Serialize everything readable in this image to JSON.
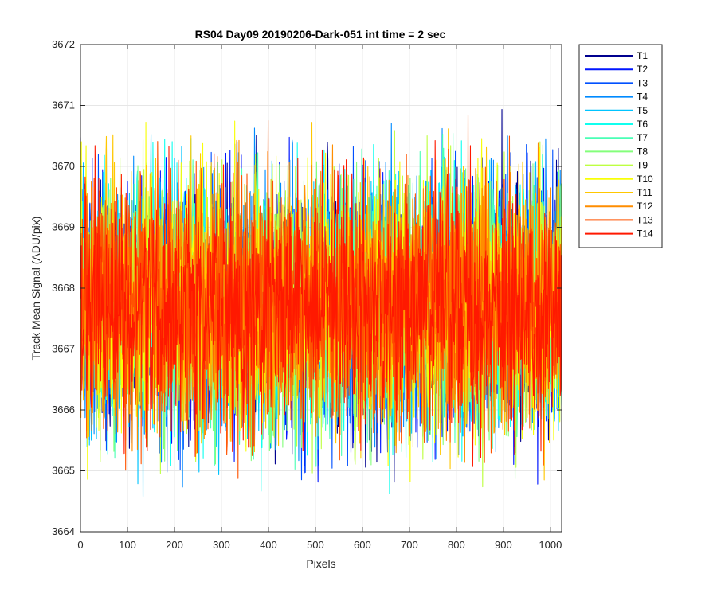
{
  "chart_data": {
    "type": "line",
    "title": "RS04 Day09 20190206-Dark-051 int time = 2 sec",
    "xlabel": "Pixels",
    "ylabel": "Track Mean Signal (ADU/pix)",
    "xlim": [
      0,
      1024
    ],
    "ylim": [
      3664,
      3672
    ],
    "xticks": [
      0,
      100,
      200,
      300,
      400,
      500,
      600,
      700,
      800,
      900,
      1000
    ],
    "yticks": [
      3664,
      3665,
      3666,
      3667,
      3668,
      3669,
      3670,
      3671,
      3672
    ],
    "grid": true,
    "legend_position": "outside-top-right",
    "series_summary": {
      "mean": 3667.7,
      "typical_min": 3665.5,
      "typical_max": 3670.3,
      "points_per_series": 1024
    },
    "series": [
      {
        "name": "T1",
        "color": "#00008F"
      },
      {
        "name": "T2",
        "color": "#0016FF"
      },
      {
        "name": "T3",
        "color": "#0050FF"
      },
      {
        "name": "T4",
        "color": "#008AFF"
      },
      {
        "name": "T5",
        "color": "#00C4FF"
      },
      {
        "name": "T6",
        "color": "#10FFEF"
      },
      {
        "name": "T7",
        "color": "#4AFFB5"
      },
      {
        "name": "T8",
        "color": "#84FF7B"
      },
      {
        "name": "T9",
        "color": "#BEFF41"
      },
      {
        "name": "T10",
        "color": "#F8FF07"
      },
      {
        "name": "T11",
        "color": "#FFC700"
      },
      {
        "name": "T12",
        "color": "#FF8D00"
      },
      {
        "name": "T13",
        "color": "#FF5300"
      },
      {
        "name": "T14",
        "color": "#FF1900"
      }
    ]
  }
}
